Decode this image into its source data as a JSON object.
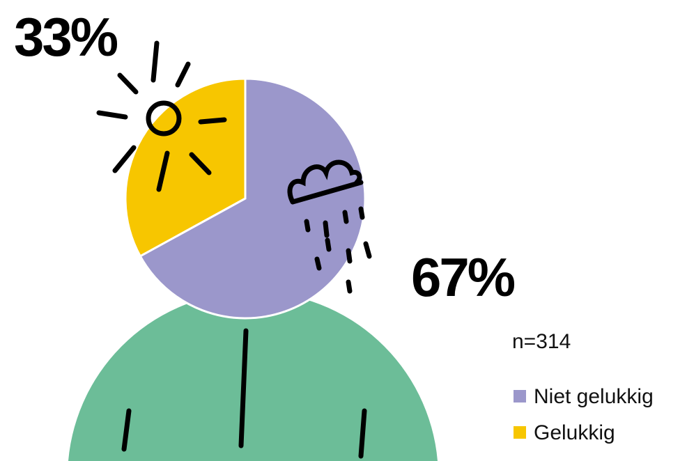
{
  "chart_data": {
    "type": "pie",
    "categories": [
      "Niet gelukkig",
      "Gelukkig"
    ],
    "values": [
      67,
      33
    ],
    "value_labels": [
      "67%",
      "33%"
    ],
    "colors": [
      "#9b97cb",
      "#f7c600"
    ],
    "note": "n=314"
  }
}
